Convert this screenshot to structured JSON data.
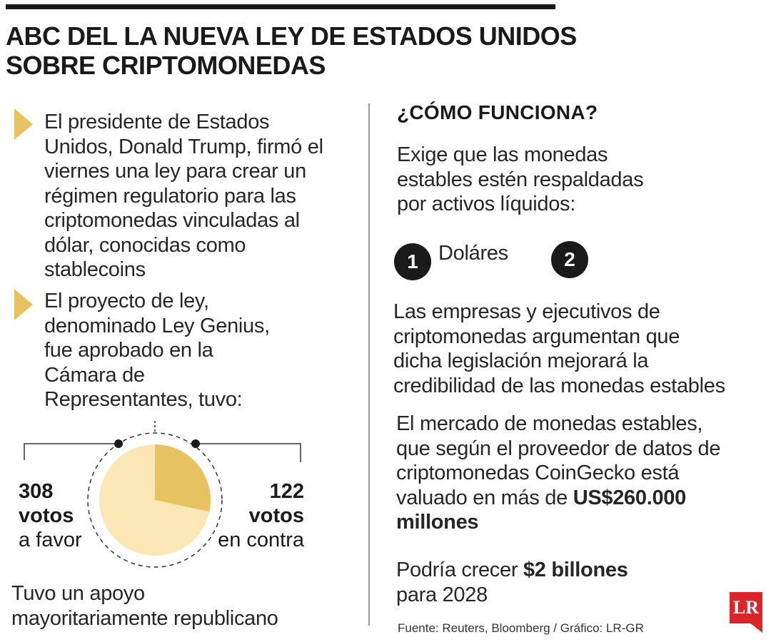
{
  "header": {
    "title_line1": "ABC DEL LA NUEVA LEY DE ESTADOS UNIDOS",
    "title_line2": "SOBRE CRIPTOMONEDAS"
  },
  "left": {
    "bullet1": [
      "El presidente de Estados",
      "Unidos, Donald Trump, firmó el",
      "viernes una ley para crear un",
      "régimen regulatorio para las",
      "criptomonedas vinculadas al",
      "dólar, conocidas como",
      "stablecoins"
    ],
    "bullet2": [
      "El proyecto de ley,",
      "denominado Ley Genius,",
      "fue aprobado en la",
      "Cámara de",
      "Representantes, tuvo:"
    ],
    "votes_for": {
      "number": "308",
      "word": "votos",
      "label": "a favor"
    },
    "votes_against": {
      "number": "122",
      "word": "votos",
      "label": "en contra"
    },
    "support": [
      "Tuvo un apoyo",
      "mayoritariamente republicano"
    ]
  },
  "chart_data": {
    "type": "pie",
    "categories": [
      "a favor",
      "en contra"
    ],
    "values": [
      308,
      122
    ],
    "colors": [
      "#fbe7b6",
      "#e7c261"
    ]
  },
  "right": {
    "heading": "¿CÓMO FUNCIONA?",
    "intro": [
      "Exige que las monedas",
      "estables estén respaldadas",
      "por activos líquidos:"
    ],
    "items": [
      {
        "number": "1",
        "label": "Doláres"
      },
      {
        "number": "2",
        "label": ""
      }
    ],
    "argument": [
      "Las empresas y ejecutivos de",
      "criptomonedas argumentan que",
      "dicha legislación mejorará la",
      "credibilidad de las monedas estables"
    ],
    "market_lines": [
      "El mercado de monedas estables,",
      "que según el proveedor de datos de",
      "criptomonedas CoinGecko está"
    ],
    "market_prefix": "valuado en más de ",
    "market_value": "US$260.000",
    "market_value_unit": "millones",
    "growth_prefix": "Podría crecer ",
    "growth_value": "$2 billones",
    "growth_suffix": "para 2028",
    "source": "Fuente: Reuters, Bloomberg / Gráfico: LR-GR",
    "logo_text": "LR"
  },
  "colors": {
    "accent": "#e7c261",
    "accent_light": "#fbe7b6",
    "text": "#1a1a1a",
    "logo": "#d8262b"
  }
}
